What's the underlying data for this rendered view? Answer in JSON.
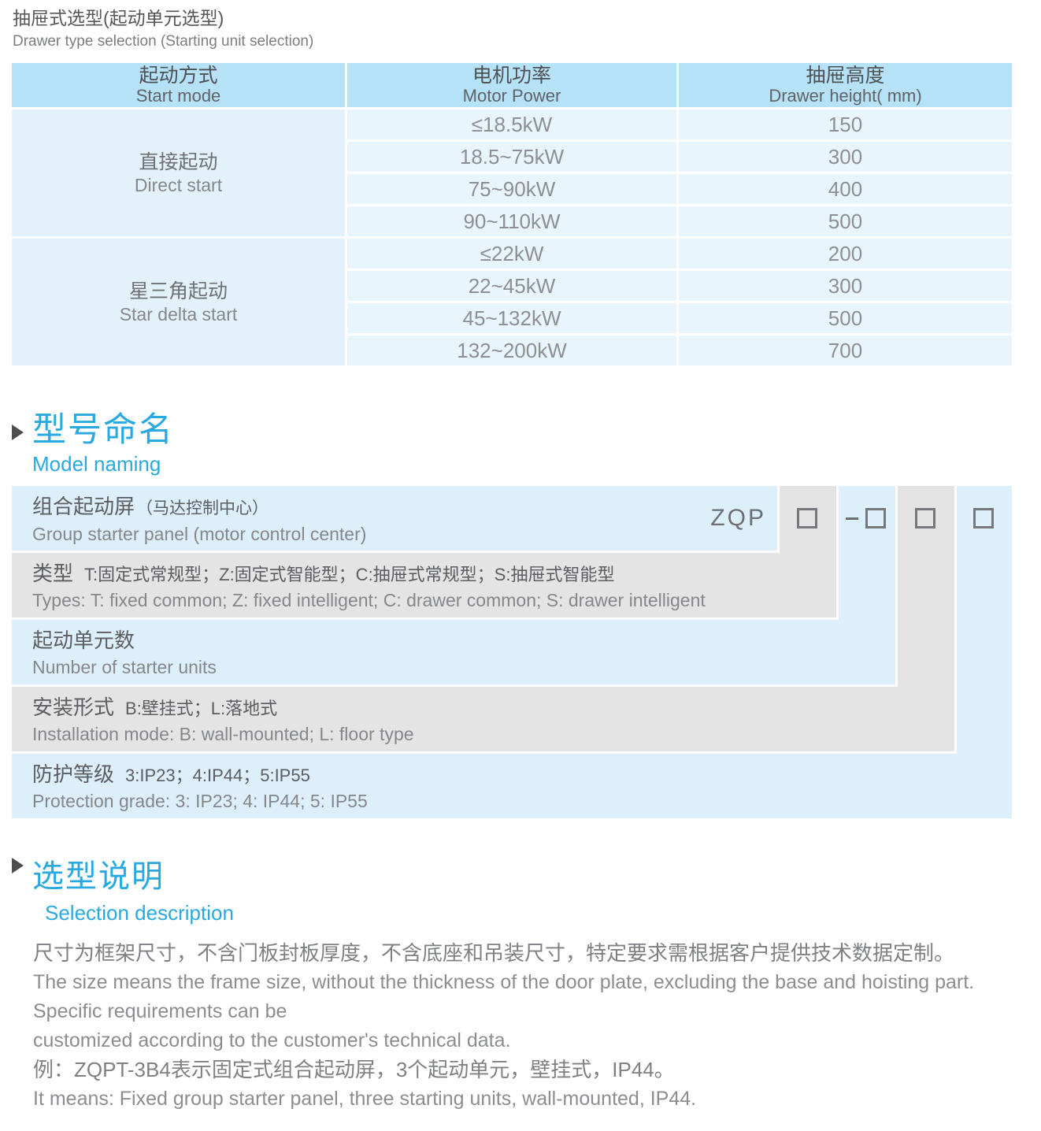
{
  "page": {
    "title_zh": "抽屉式选型(起动单元选型)",
    "title_en": "Drawer type selection (Starting unit selection)"
  },
  "selection_table": {
    "headers": [
      {
        "zh": "起动方式",
        "en": "Start mode"
      },
      {
        "zh": "电机功率",
        "en": "Motor Power"
      },
      {
        "zh": "抽屉高度",
        "en": "Drawer height( mm)"
      }
    ],
    "groups": [
      {
        "mode_zh": "直接起动",
        "mode_en": "Direct start",
        "rows": [
          {
            "power": "≤18.5kW",
            "height": "150"
          },
          {
            "power": "18.5~75kW",
            "height": "300"
          },
          {
            "power": "75~90kW",
            "height": "400"
          },
          {
            "power": "90~110kW",
            "height": "500"
          }
        ]
      },
      {
        "mode_zh": "星三角起动",
        "mode_en": "Star delta start",
        "rows": [
          {
            "power": "≤22kW",
            "height": "200"
          },
          {
            "power": "22~45kW",
            "height": "300"
          },
          {
            "power": "45~132kW",
            "height": "500"
          },
          {
            "power": "132~200kW",
            "height": "700"
          }
        ]
      }
    ]
  },
  "model_naming": {
    "heading_zh": "型号命名",
    "heading_en": "Model naming",
    "prefix": "ZQP",
    "rows": [
      {
        "zh": "组合起动屏",
        "zh_detail": "（马达控制中心）",
        "en": "Group starter panel (motor control center)"
      },
      {
        "zh": "类型",
        "zh_detail": "T:固定式常规型；Z:固定式智能型；C:抽屉式常规型；S:抽屉式智能型",
        "en": "Types: T: fixed common; Z: fixed intelligent; C: drawer common; S: drawer intelligent"
      },
      {
        "zh": "起动单元数",
        "zh_detail": "",
        "en": "Number of starter units"
      },
      {
        "zh": "安装形式",
        "zh_detail": "B:壁挂式；L:落地式",
        "en": "Installation mode: B: wall-mounted; L: floor type"
      },
      {
        "zh": "防护等级",
        "zh_detail": "3:IP23；4:IP44；5:IP55",
        "en": "Protection grade: 3: IP23; 4: IP44; 5: IP55"
      }
    ]
  },
  "selection_description": {
    "heading_zh": "选型说明",
    "heading_en": "Selection description",
    "lines": [
      {
        "lang": "zh",
        "text": "尺寸为框架尺寸，不含门板封板厚度，不含底座和吊装尺寸，特定要求需根据客户提供技术数据定制。"
      },
      {
        "lang": "en",
        "text": "The size means the frame size, without the thickness of the door plate, excluding the base and hoisting part. Specific requirements can be"
      },
      {
        "lang": "en",
        "text": "customized according to the customer's technical data."
      },
      {
        "lang": "zh",
        "text": "例：ZQPT-3B4表示固定式组合起动屏，3个起动单元，壁挂式，IP44。"
      },
      {
        "lang": "en",
        "text": "It means: Fixed group starter panel, three starting units, wall-mounted, IP44."
      }
    ]
  },
  "colors": {
    "accent_blue": "#29a9e1",
    "table_header_bg": "#b5e2f7",
    "table_cell_bg": "#e9f5fd",
    "table_group_bg": "#e3f1fb",
    "band_blue": "#ddeffa",
    "band_gray": "#e4e4e4"
  }
}
